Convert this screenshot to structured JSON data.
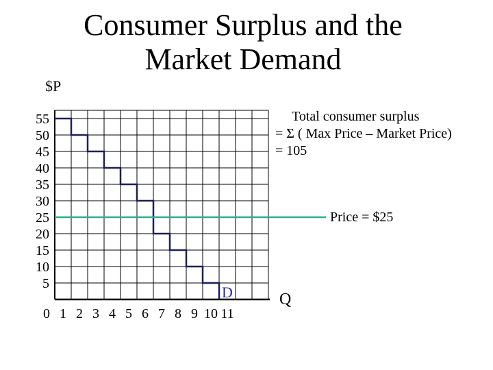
{
  "title": {
    "line1": "Consumer Surplus and the",
    "line2": "Market Demand"
  },
  "ylabel": "$P",
  "xlabel": "Q",
  "annotation": {
    "line1": "Total consumer surplus",
    "line2": "= Σ ( Max Price – Market Price)",
    "line3": "= 105"
  },
  "price_label": "Price = $25",
  "colors": {
    "demand": "#1b1f5c",
    "price_line": "#2ab08f",
    "grid": "#000000",
    "demand_label": "#2b2f8f"
  },
  "chart_data": {
    "type": "line",
    "title": "Consumer Surplus and the Market Demand",
    "xlabel": "Q",
    "ylabel": "$P",
    "x_ticks": [
      "0",
      "1",
      "2",
      "3",
      "4",
      "5",
      "6",
      "7",
      "8",
      "9",
      "10",
      "11"
    ],
    "y_ticks": [
      "55",
      "50",
      "45",
      "40",
      "35",
      "30",
      "25",
      "20",
      "15",
      "10",
      "5"
    ],
    "xlim": [
      0,
      13
    ],
    "ylim": [
      0,
      57.5
    ],
    "grid": true,
    "series": [
      {
        "name": "D",
        "style": "step",
        "points": [
          {
            "q_from": 0,
            "q_to": 1,
            "price": 55
          },
          {
            "q_from": 1,
            "q_to": 2,
            "price": 50
          },
          {
            "q_from": 2,
            "q_to": 3,
            "price": 45
          },
          {
            "q_from": 3,
            "q_to": 4,
            "price": 40
          },
          {
            "q_from": 4,
            "q_to": 5,
            "price": 35
          },
          {
            "q_from": 5,
            "q_to": 6,
            "price": 30
          },
          {
            "q_from": 6,
            "q_to": 7,
            "price": 20
          },
          {
            "q_from": 7,
            "q_to": 8,
            "price": 15
          },
          {
            "q_from": 8,
            "q_to": 9,
            "price": 10
          },
          {
            "q_from": 9,
            "q_to": 10,
            "price": 5
          }
        ]
      }
    ],
    "market_price": 25,
    "price_line_qmax": 16.5,
    "total_consumer_surplus": 105
  }
}
